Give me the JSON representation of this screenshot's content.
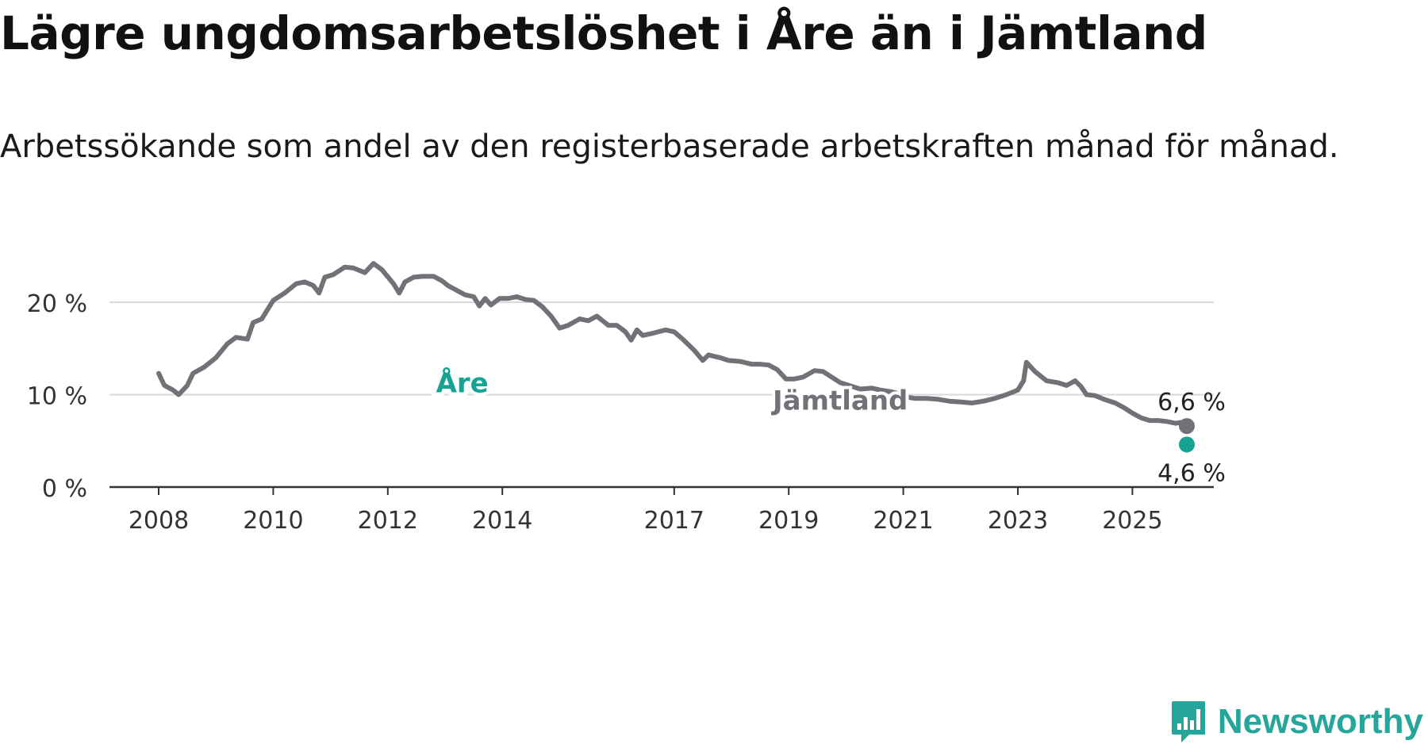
{
  "header": {
    "title": "Lägre ungdomsarbetslöshet i Åre än i Jämtland",
    "subtitle": "Arbetssökande som andel av den registerbaserade arbetskraften månad för månad."
  },
  "brand": {
    "name": "Newsworthy",
    "icon": "newsworthy-logo-icon",
    "color": "#26a69a"
  },
  "chart_data": {
    "type": "line",
    "x_axis": {
      "start": 2008.0,
      "end": 2026.0,
      "ticks": [
        2008,
        2010,
        2012,
        2014,
        2017,
        2019,
        2021,
        2023,
        2025
      ],
      "tick_labels": [
        "2008",
        "2010",
        "2012",
        "2014",
        "2017",
        "2019",
        "2021",
        "2023",
        "2025"
      ]
    },
    "y_axis": {
      "ylim": [
        0,
        27
      ],
      "ticks": [
        0,
        10,
        20
      ],
      "tick_labels": [
        "0 %",
        "10 %",
        "20 %"
      ],
      "grid": true
    },
    "series": [
      {
        "name": "Jämtland",
        "color": "#747078",
        "end_label": "6,6 %",
        "points": [
          [
            2008.0,
            12.3
          ],
          [
            2008.1,
            11.0
          ],
          [
            2008.25,
            10.5
          ],
          [
            2008.35,
            10.0
          ],
          [
            2008.5,
            11.0
          ],
          [
            2008.6,
            12.3
          ],
          [
            2008.8,
            13.0
          ],
          [
            2009.0,
            14.0
          ],
          [
            2009.2,
            15.5
          ],
          [
            2009.35,
            16.2
          ],
          [
            2009.55,
            16.0
          ],
          [
            2009.65,
            17.8
          ],
          [
            2009.8,
            18.2
          ],
          [
            2010.0,
            20.2
          ],
          [
            2010.2,
            21.0
          ],
          [
            2010.4,
            22.0
          ],
          [
            2010.55,
            22.2
          ],
          [
            2010.7,
            21.8
          ],
          [
            2010.8,
            21.0
          ],
          [
            2010.9,
            22.7
          ],
          [
            2011.05,
            23.0
          ],
          [
            2011.25,
            23.8
          ],
          [
            2011.4,
            23.7
          ],
          [
            2011.6,
            23.2
          ],
          [
            2011.75,
            24.2
          ],
          [
            2011.9,
            23.5
          ],
          [
            2012.1,
            22.0
          ],
          [
            2012.2,
            21.0
          ],
          [
            2012.3,
            22.2
          ],
          [
            2012.45,
            22.7
          ],
          [
            2012.6,
            22.8
          ],
          [
            2012.8,
            22.8
          ],
          [
            2012.95,
            22.3
          ],
          [
            2013.05,
            21.8
          ],
          [
            2013.2,
            21.3
          ],
          [
            2013.35,
            20.8
          ],
          [
            2013.5,
            20.6
          ],
          [
            2013.6,
            19.6
          ],
          [
            2013.7,
            20.4
          ],
          [
            2013.8,
            19.7
          ],
          [
            2013.95,
            20.4
          ],
          [
            2014.1,
            20.4
          ],
          [
            2014.25,
            20.6
          ],
          [
            2014.4,
            20.3
          ],
          [
            2014.55,
            20.2
          ],
          [
            2014.7,
            19.5
          ],
          [
            2014.85,
            18.5
          ],
          [
            2015.0,
            17.2
          ],
          [
            2015.15,
            17.5
          ],
          [
            2015.35,
            18.2
          ],
          [
            2015.5,
            18.0
          ],
          [
            2015.65,
            18.5
          ],
          [
            2015.85,
            17.5
          ],
          [
            2016.0,
            17.5
          ],
          [
            2016.15,
            16.8
          ],
          [
            2016.25,
            15.9
          ],
          [
            2016.35,
            17.0
          ],
          [
            2016.45,
            16.4
          ],
          [
            2016.6,
            16.6
          ],
          [
            2016.85,
            17.0
          ],
          [
            2017.0,
            16.8
          ],
          [
            2017.15,
            16.0
          ],
          [
            2017.35,
            14.8
          ],
          [
            2017.5,
            13.7
          ],
          [
            2017.6,
            14.3
          ],
          [
            2017.8,
            14.0
          ],
          [
            2017.95,
            13.7
          ],
          [
            2018.15,
            13.6
          ],
          [
            2018.35,
            13.3
          ],
          [
            2018.5,
            13.3
          ],
          [
            2018.65,
            13.2
          ],
          [
            2018.8,
            12.7
          ],
          [
            2018.95,
            11.7
          ],
          [
            2019.1,
            11.7
          ],
          [
            2019.25,
            11.9
          ],
          [
            2019.45,
            12.6
          ],
          [
            2019.6,
            12.5
          ],
          [
            2019.75,
            11.9
          ],
          [
            2019.9,
            11.3
          ],
          [
            2020.1,
            10.9
          ],
          [
            2020.25,
            10.6
          ],
          [
            2020.45,
            10.7
          ],
          [
            2020.6,
            10.5
          ],
          [
            2020.8,
            10.3
          ],
          [
            2021.0,
            10.0
          ]
        ],
        "points_late": [
          [
            2021.0,
            9.8
          ],
          [
            2021.2,
            9.6
          ],
          [
            2021.4,
            9.6
          ],
          [
            2021.6,
            9.5
          ],
          [
            2021.8,
            9.3
          ],
          [
            2022.0,
            9.2
          ],
          [
            2022.2,
            9.1
          ],
          [
            2022.4,
            9.3
          ],
          [
            2022.6,
            9.6
          ],
          [
            2022.8,
            10.0
          ],
          [
            2023.0,
            10.5
          ],
          [
            2023.1,
            11.5
          ],
          [
            2023.15,
            13.5
          ],
          [
            2023.3,
            12.5
          ],
          [
            2023.5,
            11.5
          ],
          [
            2023.7,
            11.3
          ],
          [
            2023.85,
            11.0
          ],
          [
            2024.0,
            11.5
          ],
          [
            2024.1,
            10.9
          ],
          [
            2024.2,
            10.0
          ],
          [
            2024.35,
            9.9
          ],
          [
            2024.5,
            9.5
          ],
          [
            2024.7,
            9.1
          ],
          [
            2024.85,
            8.6
          ],
          [
            2025.0,
            8.0
          ],
          [
            2025.15,
            7.5
          ],
          [
            2025.3,
            7.2
          ],
          [
            2025.45,
            7.2
          ],
          [
            2025.6,
            7.1
          ],
          [
            2025.75,
            6.9
          ],
          [
            2025.85,
            7.0
          ],
          [
            2025.95,
            6.6
          ]
        ]
      },
      {
        "name": "Åre",
        "color": "#16a394",
        "end_label": "4,6 %",
        "points": []
      }
    ]
  }
}
